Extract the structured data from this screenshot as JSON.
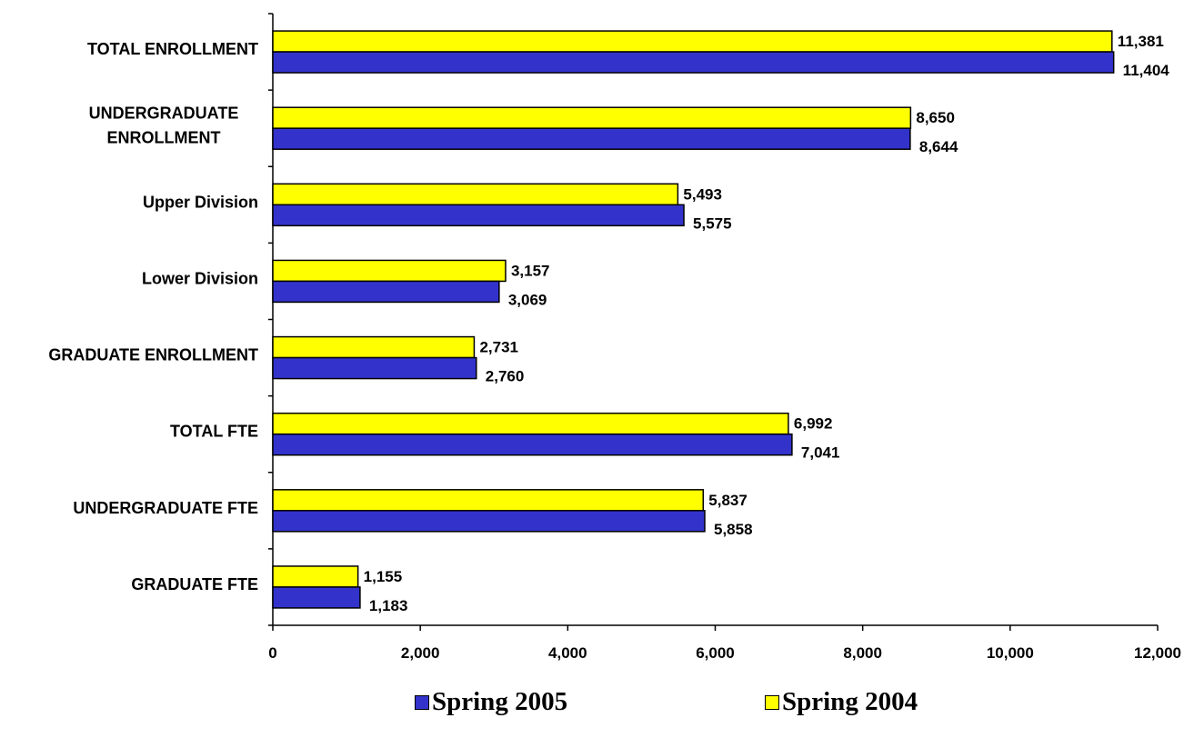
{
  "chart_data": {
    "type": "bar",
    "orientation": "horizontal",
    "categories": [
      "TOTAL ENROLLMENT",
      "UNDERGRADUATE\nENROLLMENT",
      "Upper Division",
      "Lower Division",
      "GRADUATE ENROLLMENT",
      "TOTAL FTE",
      "UNDERGRADUATE FTE",
      "GRADUATE FTE"
    ],
    "series": [
      {
        "name": "Spring 2004",
        "color": "#FFFF00",
        "values": [
          11381,
          8650,
          5493,
          3157,
          2731,
          6992,
          5837,
          1155
        ],
        "labels": [
          "11,381",
          "8,650",
          "5,493",
          "3,157",
          "2,731",
          "6,992",
          "5,837",
          "1,155"
        ]
      },
      {
        "name": "Spring 2005",
        "color": "#3333CC",
        "values": [
          11404,
          8644,
          5575,
          3069,
          2760,
          7041,
          5858,
          1183
        ],
        "labels": [
          "11,404",
          "8,644",
          "5,575",
          "3,069",
          "2,760",
          "7,041",
          "5,858",
          "1,183"
        ]
      }
    ],
    "xlim": [
      0,
      12000
    ],
    "xticks": [
      "0",
      "2,000",
      "4,000",
      "6,000",
      "8,000",
      "10,000",
      "12,000"
    ],
    "grid": false,
    "legend_position": "bottom",
    "legend": [
      {
        "name": "Spring 2005",
        "color": "#3333CC"
      },
      {
        "name": "Spring 2004",
        "color": "#FFFF00"
      }
    ]
  }
}
